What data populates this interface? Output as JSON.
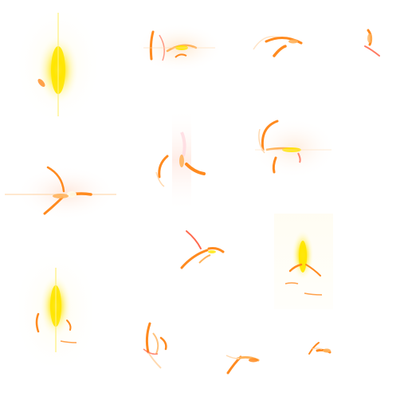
{
  "sheet": {
    "background": "#ffffff",
    "palette": {
      "core_yellow": "#ffe600",
      "glow_yellow": "#fff27a",
      "ember_orange": "#ff8a1f",
      "ember_red": "#ff5a3c",
      "halo_peach": "#ffd9b0",
      "hot_white": "#fffbe8"
    },
    "sprites": [
      {
        "name": "spark-sprite-burst-1",
        "kind": "glow-burst"
      },
      {
        "name": "spark-sprite-swirl-1",
        "kind": "ember-swirl"
      },
      {
        "name": "spark-sprite-flick-1",
        "kind": "ember-flick"
      },
      {
        "name": "spark-sprite-flick-2",
        "kind": "ember-flick-small"
      },
      {
        "name": "spark-sprite-cross-1",
        "kind": "ember-cross"
      },
      {
        "name": "spark-sprite-swirl-2",
        "kind": "ember-swirl"
      },
      {
        "name": "spark-sprite-star-1",
        "kind": "ember-star"
      },
      {
        "name": "spark-sprite-scatter-1",
        "kind": "ember-scatter"
      },
      {
        "name": "spark-sprite-burst-2",
        "kind": "glow-burst-small"
      },
      {
        "name": "spark-sprite-burst-3",
        "kind": "glow-burst"
      },
      {
        "name": "spark-sprite-swirl-3",
        "kind": "ember-swirl-small"
      },
      {
        "name": "spark-sprite-flick-3",
        "kind": "ember-flick"
      },
      {
        "name": "spark-sprite-flick-4",
        "kind": "ember-flick-small"
      }
    ]
  }
}
